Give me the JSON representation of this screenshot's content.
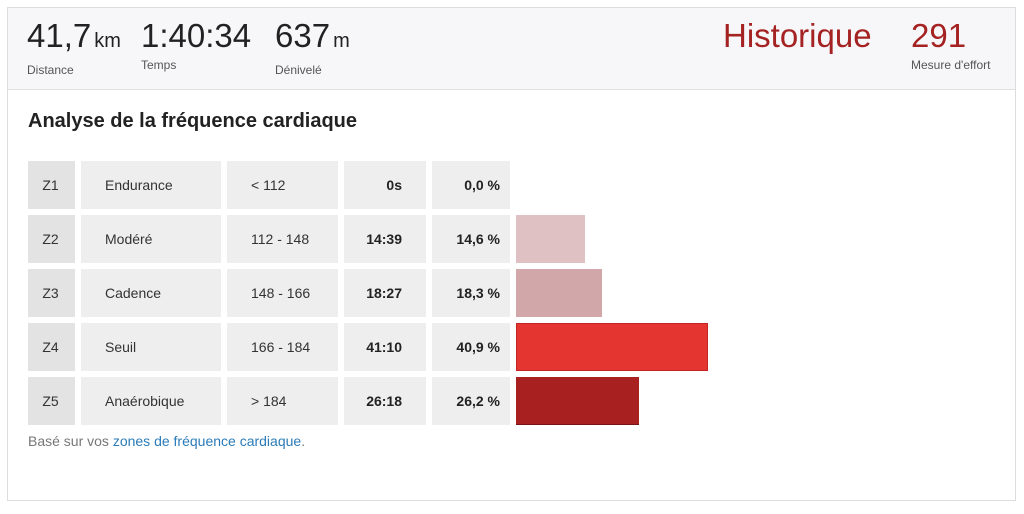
{
  "stats": {
    "distance": {
      "value": "41,7",
      "unit": "km",
      "label": "Distance"
    },
    "time": {
      "value": "1:40:34",
      "label": "Temps"
    },
    "elevation": {
      "value": "637",
      "unit": "m",
      "label": "Dénivelé"
    },
    "effort": {
      "value": "Historique",
      "score": "291",
      "label": "Mesure d'effort"
    }
  },
  "section_title": "Analyse de la fréquence cardiaque",
  "zones": [
    {
      "id": "Z1",
      "name": "Endurance",
      "range": "< 112",
      "time": "0s",
      "percent": "0,0 %",
      "fraction": 0.0,
      "color": "#e0c1c3"
    },
    {
      "id": "Z2",
      "name": "Modéré",
      "range": "112 - 148",
      "time": "14:39",
      "percent": "14,6 %",
      "fraction": 0.146,
      "color": "#e0c1c3"
    },
    {
      "id": "Z3",
      "name": "Cadence",
      "range": "148 - 166",
      "time": "18:27",
      "percent": "18,3 %",
      "fraction": 0.183,
      "color": "#d1a7a9"
    },
    {
      "id": "Z4",
      "name": "Seuil",
      "range": "166 - 184",
      "time": "41:10",
      "percent": "40,9 %",
      "fraction": 0.409,
      "color": "#e53530"
    },
    {
      "id": "Z5",
      "name": "Anaérobique",
      "range": "> 184",
      "time": "26:18",
      "percent": "26,2 %",
      "fraction": 0.262,
      "color": "#a82020"
    }
  ],
  "footnote": {
    "prefix": "Basé sur vos ",
    "link": "zones de fréquence cardiaque",
    "suffix": "."
  },
  "colors": {
    "accent_red": "#a52222",
    "link_blue": "#2a7bb8"
  }
}
